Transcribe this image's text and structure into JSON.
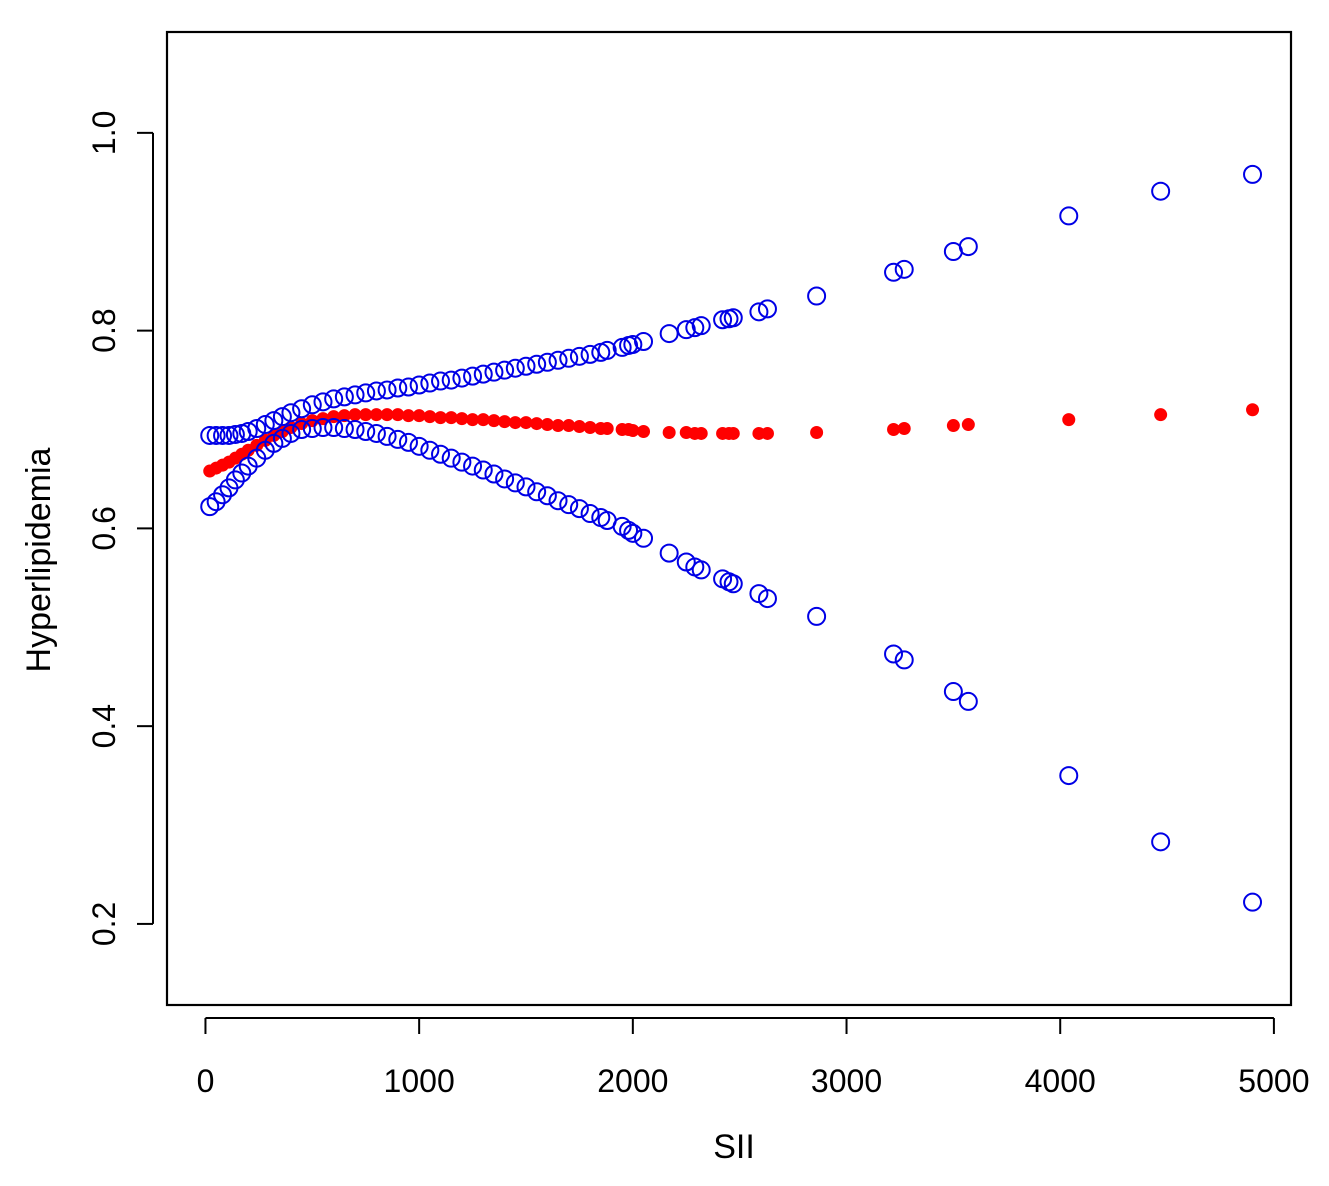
{
  "chart_data": {
    "type": "scatter",
    "title": "",
    "xlabel": "SII",
    "ylabel": "Hyperlipidemia",
    "xlim": [
      -180,
      5080
    ],
    "ylim": [
      0.118,
      1.102
    ],
    "x_ticks": [
      0,
      1000,
      2000,
      3000,
      4000,
      5000
    ],
    "x_tick_labels": [
      "0",
      "1000",
      "2000",
      "3000",
      "4000",
      "5000"
    ],
    "y_ticks": [
      0.2,
      0.4,
      0.6,
      0.8,
      1.0
    ],
    "y_tick_labels": [
      "0.2",
      "0.4",
      "0.6",
      "0.8",
      "1.0"
    ],
    "grid": false,
    "colors": {
      "fit": "#ff0000",
      "ci": "#0000e6",
      "axis": "#000000"
    },
    "series": [
      {
        "role": "fitted",
        "marker": "filled-circle",
        "color": "#ff0000",
        "x": [
          20,
          50,
          80,
          110,
          140,
          170,
          200,
          240,
          280,
          320,
          360,
          400,
          450,
          500,
          550,
          600,
          650,
          700,
          750,
          800,
          850,
          900,
          950,
          1000,
          1050,
          1100,
          1150,
          1200,
          1250,
          1300,
          1350,
          1400,
          1450,
          1500,
          1550,
          1600,
          1650,
          1700,
          1750,
          1800,
          1850,
          1880,
          1950,
          1980,
          2000,
          2050,
          2170,
          2250,
          2290,
          2320,
          2420,
          2450,
          2470,
          2590,
          2630,
          2860,
          3220,
          3270,
          3500,
          3570,
          4040,
          4470,
          4900
        ],
        "y": [
          0.658,
          0.661,
          0.664,
          0.667,
          0.671,
          0.675,
          0.679,
          0.684,
          0.689,
          0.694,
          0.698,
          0.702,
          0.706,
          0.709,
          0.711,
          0.713,
          0.714,
          0.715,
          0.715,
          0.715,
          0.715,
          0.715,
          0.714,
          0.714,
          0.713,
          0.712,
          0.712,
          0.711,
          0.71,
          0.71,
          0.709,
          0.708,
          0.707,
          0.707,
          0.706,
          0.705,
          0.704,
          0.704,
          0.703,
          0.702,
          0.701,
          0.701,
          0.7,
          0.7,
          0.699,
          0.698,
          0.697,
          0.697,
          0.696,
          0.696,
          0.696,
          0.696,
          0.696,
          0.696,
          0.696,
          0.697,
          0.7,
          0.701,
          0.704,
          0.705,
          0.71,
          0.715,
          0.72
        ]
      },
      {
        "role": "upper-bound",
        "marker": "open-circle",
        "color": "#0000e6",
        "x": [
          20,
          50,
          80,
          110,
          140,
          170,
          200,
          240,
          280,
          320,
          360,
          400,
          450,
          500,
          550,
          600,
          650,
          700,
          750,
          800,
          850,
          900,
          950,
          1000,
          1050,
          1100,
          1150,
          1200,
          1250,
          1300,
          1350,
          1400,
          1450,
          1500,
          1550,
          1600,
          1650,
          1700,
          1750,
          1800,
          1850,
          1880,
          1950,
          1980,
          2000,
          2050,
          2170,
          2250,
          2290,
          2320,
          2420,
          2450,
          2470,
          2590,
          2630,
          2860,
          3220,
          3270,
          3500,
          3570,
          4040,
          4470,
          4900
        ],
        "y": [
          0.694,
          0.694,
          0.694,
          0.694,
          0.695,
          0.696,
          0.698,
          0.701,
          0.705,
          0.709,
          0.713,
          0.717,
          0.721,
          0.725,
          0.728,
          0.731,
          0.733,
          0.735,
          0.737,
          0.739,
          0.74,
          0.742,
          0.743,
          0.745,
          0.747,
          0.749,
          0.75,
          0.752,
          0.754,
          0.756,
          0.758,
          0.76,
          0.762,
          0.764,
          0.766,
          0.768,
          0.77,
          0.772,
          0.774,
          0.776,
          0.778,
          0.78,
          0.783,
          0.785,
          0.786,
          0.789,
          0.797,
          0.801,
          0.803,
          0.805,
          0.811,
          0.812,
          0.813,
          0.819,
          0.822,
          0.835,
          0.859,
          0.862,
          0.88,
          0.885,
          0.916,
          0.941,
          0.958
        ]
      },
      {
        "role": "lower-bound",
        "marker": "open-circle",
        "color": "#0000e6",
        "x": [
          20,
          50,
          80,
          110,
          140,
          170,
          200,
          240,
          280,
          320,
          360,
          400,
          450,
          500,
          550,
          600,
          650,
          700,
          750,
          800,
          850,
          900,
          950,
          1000,
          1050,
          1100,
          1150,
          1200,
          1250,
          1300,
          1350,
          1400,
          1450,
          1500,
          1550,
          1600,
          1650,
          1700,
          1750,
          1800,
          1850,
          1880,
          1950,
          1980,
          2000,
          2050,
          2170,
          2250,
          2290,
          2320,
          2420,
          2450,
          2470,
          2590,
          2630,
          2860,
          3220,
          3270,
          3500,
          3570,
          4040,
          4470,
          4900
        ],
        "y": [
          0.622,
          0.627,
          0.634,
          0.641,
          0.649,
          0.656,
          0.663,
          0.671,
          0.679,
          0.686,
          0.691,
          0.696,
          0.7,
          0.701,
          0.702,
          0.702,
          0.701,
          0.7,
          0.698,
          0.696,
          0.693,
          0.69,
          0.687,
          0.683,
          0.679,
          0.675,
          0.671,
          0.667,
          0.663,
          0.659,
          0.655,
          0.65,
          0.646,
          0.642,
          0.637,
          0.633,
          0.628,
          0.624,
          0.62,
          0.615,
          0.611,
          0.608,
          0.602,
          0.598,
          0.595,
          0.59,
          0.575,
          0.566,
          0.561,
          0.558,
          0.549,
          0.546,
          0.544,
          0.534,
          0.529,
          0.511,
          0.473,
          0.467,
          0.435,
          0.425,
          0.35,
          0.283,
          0.222
        ]
      }
    ]
  }
}
